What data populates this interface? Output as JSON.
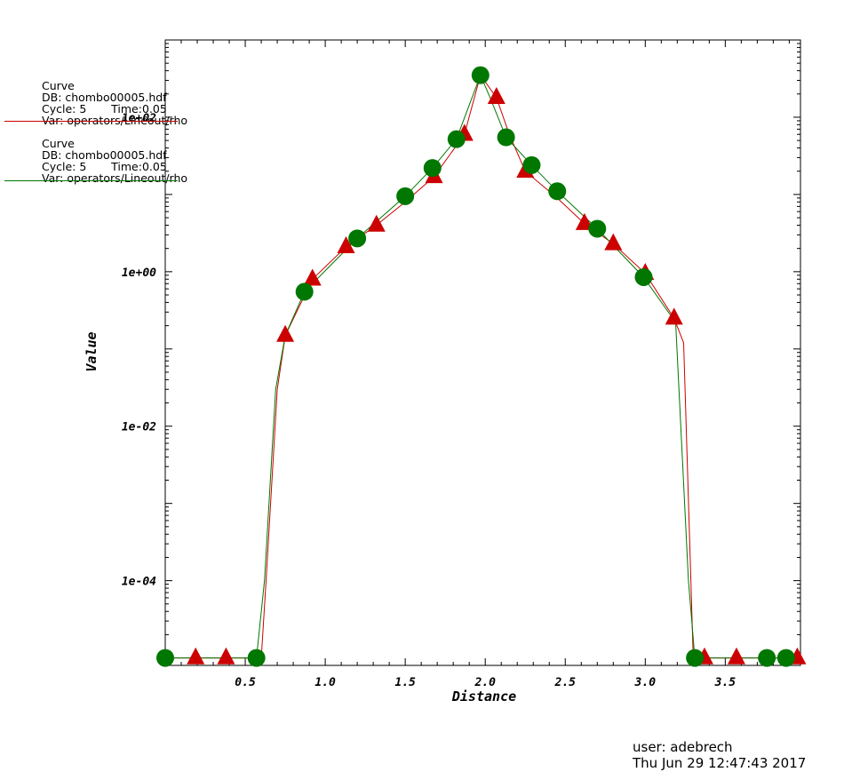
{
  "legend": [
    {
      "line1": "Curve",
      "db": "DB: chombo00005.hdf",
      "cycle": "Cycle: 5",
      "time": "Time:0.05",
      "var": "Var: operators/Lineout/rho",
      "color": "#cc0000",
      "marker": "triangle"
    },
    {
      "line1": "Curve",
      "db": "DB: chombo00005.hdf",
      "cycle": "Cycle: 5",
      "time": "Time:0.05",
      "var": "Var: operators/Lineout/rho",
      "color": "#007700",
      "marker": "circle"
    }
  ],
  "footer": {
    "user": "user: adebrech",
    "date": "Thu Jun 29 12:47:43 2017"
  },
  "chart_data": {
    "type": "line",
    "xlabel": "Distance",
    "ylabel": "Value",
    "yscale": "log",
    "xlim": [
      0.0,
      3.97
    ],
    "ylim": [
      8e-06,
      1000
    ],
    "x_ticks": [
      "0.5",
      "1.0",
      "1.5",
      "2.0",
      "2.5",
      "3.0",
      "3.5"
    ],
    "x_tick_values": [
      0.5,
      1.0,
      1.5,
      2.0,
      2.5,
      3.0,
      3.5
    ],
    "y_ticks": [
      "1e-04",
      "1e-02",
      "1e+00",
      "1e+02"
    ],
    "y_tick_values": [
      0.0001,
      0.01,
      1,
      100
    ],
    "series": [
      {
        "color": "#cc0000",
        "marker": "triangle",
        "points": [
          [
            0.0,
            1e-05
          ],
          [
            0.19,
            1e-05
          ],
          [
            0.38,
            1e-05
          ],
          [
            0.6,
            1e-05
          ],
          [
            0.63,
            0.0001
          ],
          [
            0.7,
            0.03
          ],
          [
            0.75,
            0.15
          ],
          [
            0.92,
            0.8
          ],
          [
            1.13,
            2.1
          ],
          [
            1.32,
            4.0
          ],
          [
            1.5,
            8.0
          ],
          [
            1.68,
            17
          ],
          [
            1.87,
            60
          ],
          [
            1.97,
            350
          ],
          [
            2.07,
            180
          ],
          [
            2.15,
            60
          ],
          [
            2.25,
            20
          ],
          [
            2.45,
            9
          ],
          [
            2.62,
            4.2
          ],
          [
            2.8,
            2.3
          ],
          [
            3.0,
            0.95
          ],
          [
            3.18,
            0.25
          ],
          [
            3.24,
            0.12
          ],
          [
            3.3,
            1e-05
          ],
          [
            3.37,
            1e-05
          ],
          [
            3.57,
            1e-05
          ],
          [
            3.75,
            1e-05
          ],
          [
            3.95,
            1e-05
          ]
        ],
        "markers_x": [
          0.19,
          0.38,
          0.75,
          0.92,
          1.13,
          1.32,
          1.68,
          1.87,
          2.07,
          2.25,
          2.62,
          2.8,
          3.0,
          3.18,
          3.37,
          3.57,
          3.95
        ]
      },
      {
        "color": "#007700",
        "marker": "circle",
        "points": [
          [
            0.0,
            1e-05
          ],
          [
            0.15,
            1e-05
          ],
          [
            0.3,
            1e-05
          ],
          [
            0.57,
            1e-05
          ],
          [
            0.62,
            0.0001
          ],
          [
            0.69,
            0.03
          ],
          [
            0.75,
            0.15
          ],
          [
            0.87,
            0.55
          ],
          [
            1.2,
            2.7
          ],
          [
            1.5,
            9.5
          ],
          [
            1.67,
            22
          ],
          [
            1.82,
            52
          ],
          [
            1.97,
            350
          ],
          [
            2.03,
            180
          ],
          [
            2.13,
            55
          ],
          [
            2.29,
            24
          ],
          [
            2.45,
            11
          ],
          [
            2.7,
            3.6
          ],
          [
            2.99,
            0.85
          ],
          [
            3.19,
            0.22
          ],
          [
            3.27,
            0.0001
          ],
          [
            3.31,
            1e-05
          ],
          [
            3.5,
            1e-05
          ],
          [
            3.76,
            1e-05
          ],
          [
            3.88,
            1e-05
          ]
        ],
        "markers_x": [
          0.0,
          0.57,
          0.87,
          1.2,
          1.5,
          1.67,
          1.82,
          1.97,
          2.13,
          2.29,
          2.45,
          2.7,
          2.99,
          3.31,
          3.76,
          3.88
        ]
      }
    ]
  }
}
